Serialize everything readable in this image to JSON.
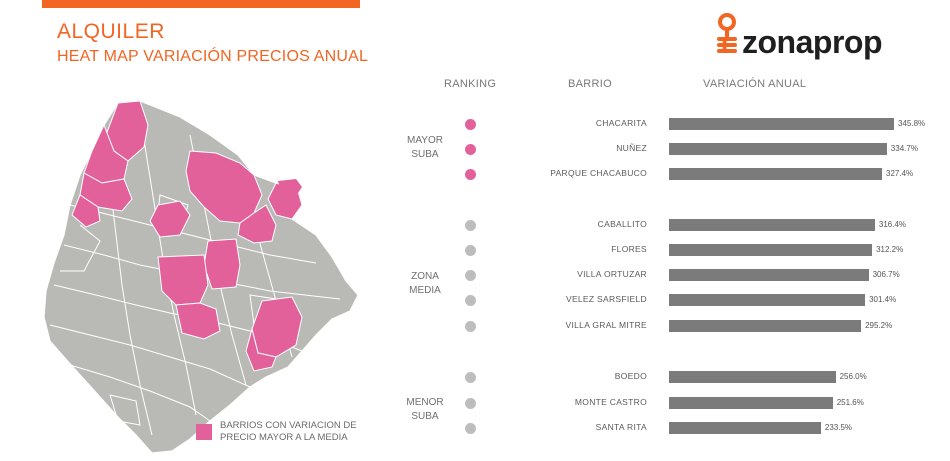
{
  "header": {
    "title": "ALQUILER",
    "subtitle": "HEAT MAP VARIACIÓN PRECIOS ANUAL",
    "brand": "zonaprop"
  },
  "columns": {
    "ranking": "RANKING",
    "barrio": "BARRIO",
    "variacion": "VARIACIÓN ANUAL"
  },
  "groups": {
    "mayor_line1": "MAYOR",
    "mayor_line2": "SUBA",
    "zona_line1": "ZONA",
    "zona_line2": "MEDIA",
    "menor_line1": "MENOR",
    "menor_line2": "SUBA"
  },
  "legend": {
    "line1": "BARRIOS CON VARIACION DE",
    "line2": "PRECIO MAYOR A LA MEDIA"
  },
  "colors": {
    "accent": "#f26522",
    "pink": "#e2619b",
    "dot_gray": "#bdbdbd",
    "bar": "#7b7b7b",
    "map_gray": "#b9b9b6"
  },
  "chart_data": {
    "type": "bar",
    "orientation": "horizontal",
    "categories": [
      "CHACARITA",
      "NUÑEZ",
      "PARQUE CHACABUCO",
      "CABALLITO",
      "FLORES",
      "VILLA ORTUZAR",
      "VELEZ SARSFIELD",
      "VILLA GRAL MITRE",
      "BOEDO",
      "MONTE CASTRO",
      "SANTA RITA"
    ],
    "values": [
      345.8,
      334.7,
      327.4,
      316.4,
      312.2,
      306.7,
      301.4,
      295.2,
      256.0,
      251.6,
      233.5
    ],
    "labels": [
      "345.8%",
      "334.7%",
      "327.4%",
      "316.4%",
      "312.2%",
      "306.7%",
      "301.4%",
      "295.2%",
      "256.0%",
      "251.6%",
      "233.5%"
    ],
    "ranking": [
      "mayor",
      "mayor",
      "mayor",
      "media",
      "media",
      "media",
      "media",
      "media",
      "menor",
      "menor",
      "menor"
    ],
    "xlim": [
      0,
      345.8
    ]
  }
}
